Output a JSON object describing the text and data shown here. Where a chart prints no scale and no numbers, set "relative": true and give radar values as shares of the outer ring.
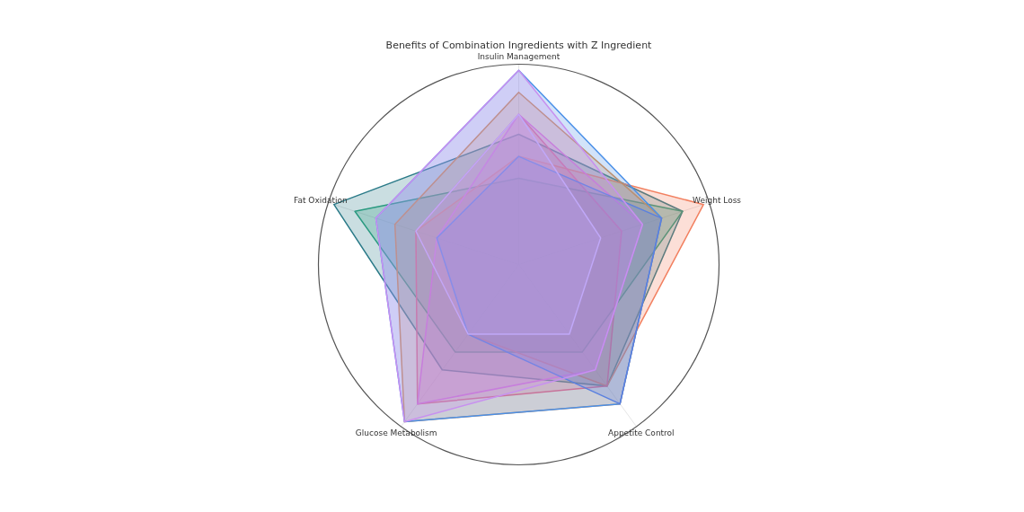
{
  "chart_data": {
    "type": "radar",
    "title": "Benefits of Combination Ingredients with Z Ingredient",
    "categories": [
      "Insulin Management",
      "Weight Loss",
      "Appetite Control",
      "Glucose Metabolism",
      "Fat Oxidation"
    ],
    "relative": true,
    "series": [
      {
        "color": "#2a7a88",
        "values": [
          0.65,
          0.86,
          0.75,
          0.65,
          0.97
        ]
      },
      {
        "color": "#2a9a80",
        "values": [
          0.43,
          0.86,
          0.54,
          0.54,
          0.86
        ]
      },
      {
        "color": "#f28060",
        "values": [
          0.54,
          0.97,
          0.75,
          0.43,
          0.54
        ]
      },
      {
        "color": "#e09048",
        "values": [
          0.86,
          0.75,
          0.86,
          0.97,
          0.65
        ]
      },
      {
        "color": "#f06a80",
        "values": [
          0.75,
          0.54,
          0.75,
          0.86,
          0.54
        ]
      },
      {
        "color": "#f070d0",
        "values": [
          0.75,
          0.65,
          0.65,
          0.86,
          0.43
        ]
      },
      {
        "color": "#4a90e8",
        "values": [
          0.97,
          0.75,
          0.86,
          0.97,
          0.75
        ]
      },
      {
        "color": "#5a80e0",
        "values": [
          0.54,
          0.75,
          0.86,
          0.43,
          0.43
        ]
      },
      {
        "color": "#c890f0",
        "values": [
          0.97,
          0.65,
          0.65,
          0.97,
          0.75
        ]
      },
      {
        "color": "#c0a8f8",
        "values": [
          0.75,
          0.43,
          0.43,
          0.43,
          0.54
        ]
      }
    ]
  }
}
